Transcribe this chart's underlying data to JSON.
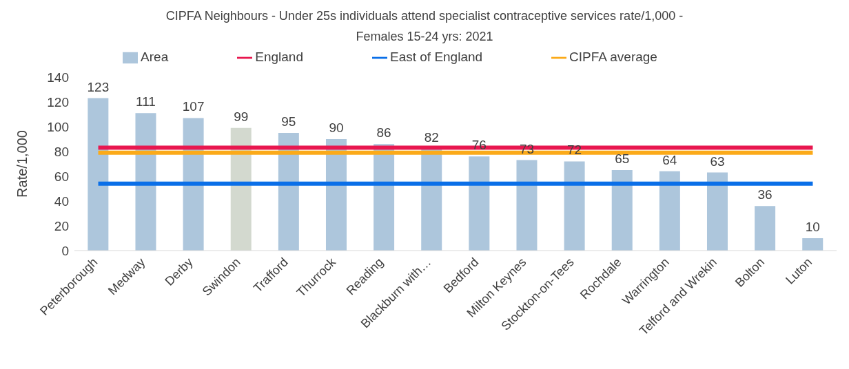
{
  "chart_data": {
    "type": "bar",
    "title": "CIPFA Neighbours - Under 25s individuals attend specialist contraceptive services rate/1,000 - Females 15-24 yrs: 2021",
    "ylabel": "Rate/1,000",
    "categories": [
      "Peterborough",
      "Medway",
      "Derby",
      "Swindon",
      "Trafford",
      "Thurrock",
      "Reading",
      "Blackburn with…",
      "Bedford",
      "Milton Keynes",
      "Stockton-on-Tees",
      "Rochdale",
      "Warrington",
      "Telford and Wrekin",
      "Bolton",
      "Luton"
    ],
    "series": [
      {
        "name": "Area",
        "color": "#adc6dc",
        "colors": [
          "#adc6dc",
          "#adc6dc",
          "#adc6dc",
          "#d3d9cf",
          "#adc6dc",
          "#adc6dc",
          "#adc6dc",
          "#adc6dc",
          "#adc6dc",
          "#adc6dc",
          "#adc6dc",
          "#adc6dc",
          "#adc6dc",
          "#adc6dc",
          "#adc6dc",
          "#adc6dc"
        ],
        "data_labels": true,
        "values": [
          123,
          111,
          107,
          99,
          95,
          90,
          86,
          82,
          76,
          73,
          72,
          65,
          64,
          63,
          36,
          10
        ]
      },
      {
        "name": "England",
        "type": "line",
        "color": "#e8174f",
        "values": [
          83,
          83,
          83,
          83,
          83,
          83,
          83,
          83,
          83,
          83,
          83,
          83,
          83,
          83,
          83,
          83
        ]
      },
      {
        "name": "East of England",
        "type": "line",
        "color": "#0a6fe8",
        "values": [
          54,
          54,
          54,
          54,
          54,
          54,
          54,
          54,
          54,
          54,
          54,
          54,
          54,
          54,
          54,
          54
        ]
      },
      {
        "name": "CIPFA average",
        "type": "line",
        "color": "#fbaa19",
        "values": [
          79,
          79,
          79,
          79,
          79,
          79,
          79,
          79,
          79,
          79,
          79,
          79,
          79,
          79,
          79,
          79
        ]
      }
    ],
    "ylim": [
      0,
      140
    ],
    "yticks": [
      0,
      20,
      40,
      60,
      80,
      100,
      120,
      140
    ],
    "grid": false,
    "legend": "top",
    "marker": "none"
  }
}
